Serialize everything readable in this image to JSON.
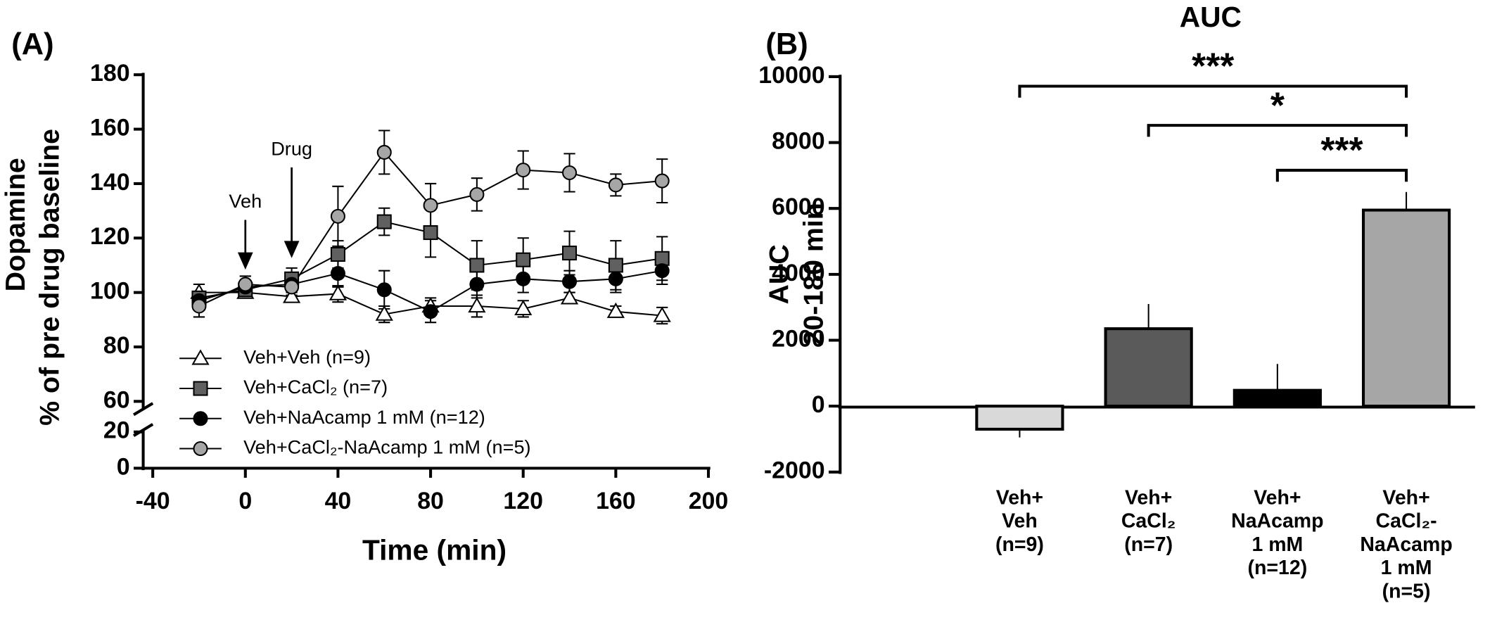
{
  "chart_data": [
    {
      "type": "line",
      "panel_label": "(A)",
      "y_label": [
        "Dopamine",
        "% of pre drug baseline"
      ],
      "x_label": "Time (min)",
      "xlim": [
        -40,
        200
      ],
      "xticks": [
        -40,
        0,
        40,
        80,
        120,
        160,
        200
      ],
      "ylim_lower": [
        0,
        20
      ],
      "ylim": [
        60,
        180
      ],
      "yticks": [
        0,
        20,
        60,
        80,
        100,
        120,
        140,
        160,
        180
      ],
      "annotations": [
        {
          "text": "Veh",
          "x": 0
        },
        {
          "text": "Drug",
          "x": 20
        }
      ],
      "x": [
        -20,
        0,
        20,
        40,
        60,
        80,
        100,
        120,
        140,
        160,
        180
      ],
      "series": [
        {
          "name": "Veh+Veh (n=9)",
          "marker": "triangle",
          "color": "#ffffff",
          "values": [
            100,
            100,
            98.5,
            99.5,
            92,
            95,
            95,
            94,
            98,
            93,
            91.5
          ],
          "errors": [
            3,
            2,
            2,
            3,
            3,
            3,
            4,
            3,
            2,
            2,
            3
          ]
        },
        {
          "name": "Veh+CaCl₂ (n=7)",
          "marker": "square",
          "color": "#606060",
          "values": [
            98,
            101,
            105,
            114,
            126,
            122,
            110,
            112,
            114.5,
            110,
            112.5
          ],
          "errors": [
            2,
            2,
            4,
            5,
            5,
            9,
            9,
            8,
            8,
            9,
            8
          ]
        },
        {
          "name": "Veh+NaAcamp 1 mM (n=12)",
          "marker": "circle",
          "color": "#000000",
          "values": [
            97,
            102,
            103,
            107,
            101,
            93,
            103,
            105,
            104,
            105,
            108
          ],
          "errors": [
            3,
            2,
            3,
            5,
            7,
            4,
            5,
            5,
            4,
            5,
            5
          ]
        },
        {
          "name": "Veh+CaCl₂-NaAcamp 1 mM (n=5)",
          "marker": "circle",
          "color": "#a6a6a6",
          "values": [
            95,
            103,
            102,
            128,
            151.5,
            132,
            136,
            145,
            144,
            139.5,
            141
          ],
          "errors": [
            4,
            3,
            3,
            11,
            8,
            8,
            6,
            7,
            7,
            4,
            8
          ]
        }
      ]
    },
    {
      "type": "bar",
      "panel_label": "(B)",
      "title": "AUC",
      "y_label": [
        "AUC",
        "20-180 min"
      ],
      "ylim": [
        -2000,
        10000
      ],
      "yticks": [
        -2000,
        0,
        2000,
        4000,
        6000,
        8000,
        10000
      ],
      "categories": [
        [
          "Veh+",
          "Veh",
          "(n=9)"
        ],
        [
          "Veh+",
          "CaCl₂",
          "(n=7)"
        ],
        [
          "Veh+",
          "NaAcamp",
          "1 mM",
          "(n=12)"
        ],
        [
          "Veh+",
          "CaCl₂-",
          "NaAcamp",
          "1 mM",
          "(n=5)"
        ]
      ],
      "values": [
        -700,
        2350,
        480,
        5950
      ],
      "errors": [
        250,
        750,
        800,
        550
      ],
      "colors": [
        "#d9d9d9",
        "#5a5a5a",
        "#000000",
        "#a6a6a6"
      ],
      "significance": [
        {
          "from": 0,
          "to": 3,
          "label": "***"
        },
        {
          "from": 1,
          "to": 3,
          "label": "*"
        },
        {
          "from": 2,
          "to": 3,
          "label": "***"
        }
      ]
    }
  ]
}
